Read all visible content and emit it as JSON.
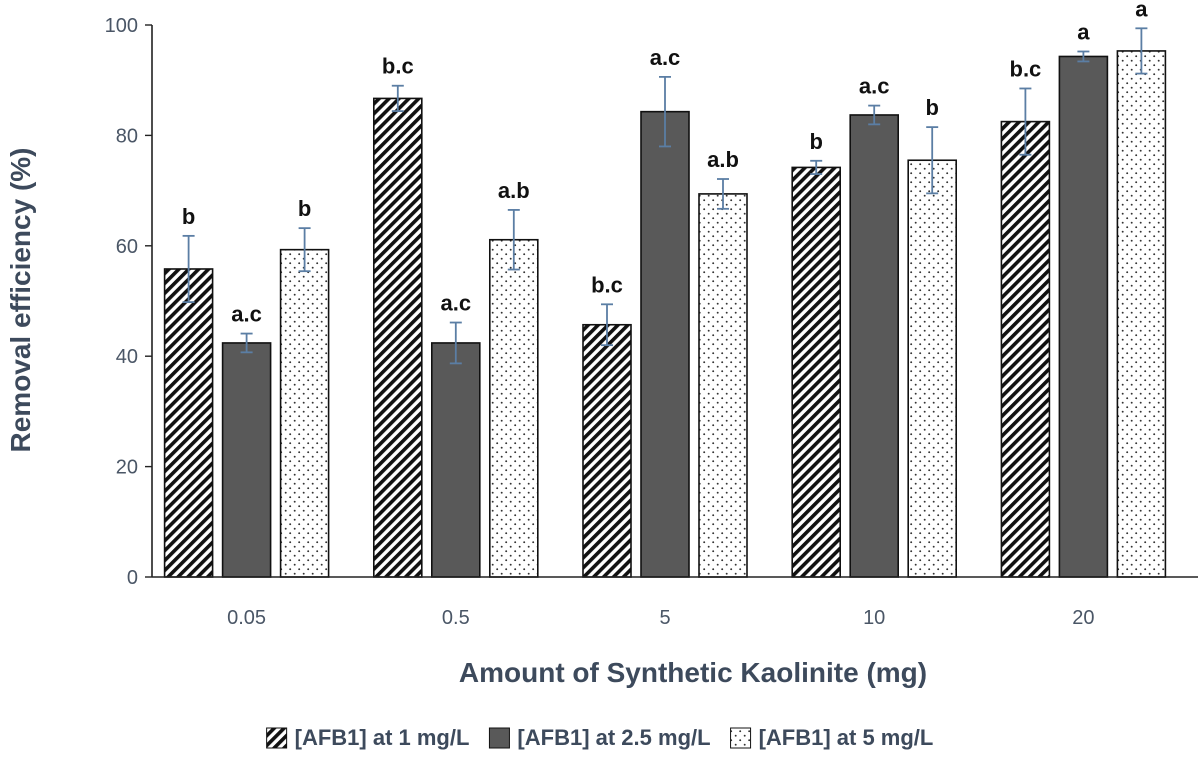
{
  "chart_data": {
    "type": "bar",
    "title": "",
    "xlabel": "Amount of Synthetic Kaolinite (mg)",
    "ylabel": "Removal efficiency (%)",
    "ylim": [
      0,
      100
    ],
    "yticks": [
      0,
      20,
      40,
      60,
      80,
      100
    ],
    "categories": [
      "0.05",
      "0.5",
      "5",
      "10",
      "20"
    ],
    "series": [
      {
        "name": "[AFB1] at 1 mg/L",
        "pattern": "diagonal-stripes",
        "values": [
          55.8,
          86.7,
          45.7,
          74.2,
          82.5
        ],
        "errors": [
          6.0,
          2.3,
          3.7,
          1.2,
          6.0
        ],
        "labels": [
          "b",
          "b.c",
          "b.c",
          "b",
          "b.c"
        ]
      },
      {
        "name": "[AFB1] at 2.5 mg/L",
        "pattern": "solid",
        "values": [
          42.4,
          42.4,
          84.3,
          83.7,
          94.3
        ],
        "errors": [
          1.7,
          3.7,
          6.3,
          1.7,
          0.9
        ],
        "labels": [
          "a.c",
          "a.c",
          "a.c",
          "a.c",
          "a"
        ]
      },
      {
        "name": "[AFB1] at 5 mg/L",
        "pattern": "dots",
        "values": [
          59.3,
          61.1,
          69.4,
          75.5,
          95.3
        ],
        "errors": [
          3.9,
          5.4,
          2.7,
          6.0,
          4.1
        ],
        "labels": [
          "b",
          "a.b",
          "a.b",
          "b",
          "a"
        ]
      }
    ],
    "legend": "bottom",
    "grid": false,
    "colors": {
      "solid": "#595959",
      "stroke": "#111111",
      "axis": "#222222",
      "error": "#5b7ea4"
    }
  }
}
